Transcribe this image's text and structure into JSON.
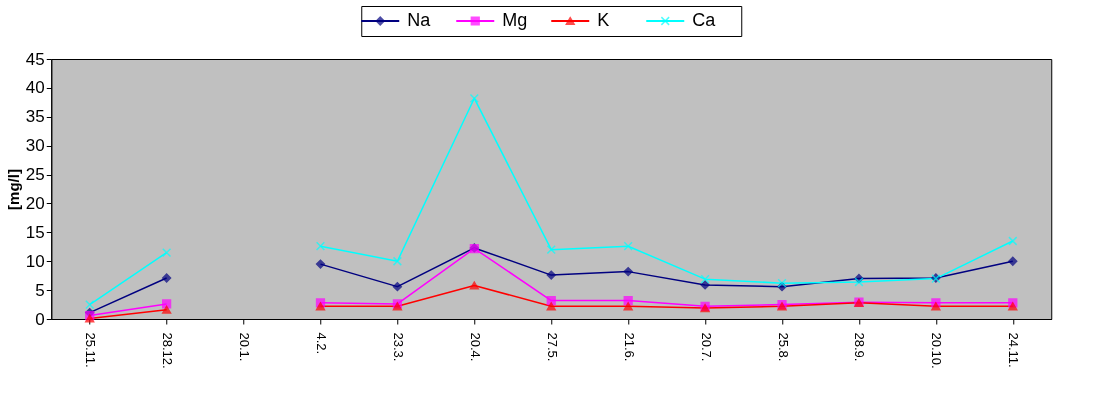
{
  "chart_data": {
    "type": "line",
    "ylabel": "[mg/l]",
    "categories": [
      "25.11.",
      "28.12.",
      "20.1.",
      "4.2.",
      "23.3.",
      "20.4.",
      "27.5.",
      "21.6.",
      "20.7.",
      "25.8.",
      "28.9.",
      "20.10.",
      "24.11."
    ],
    "series": [
      {
        "name": "Na",
        "color": "#000080",
        "marker": "diamond",
        "values": [
          1.1,
          7.1,
          null,
          9.5,
          5.6,
          12.3,
          7.6,
          8.2,
          5.9,
          5.6,
          7.0,
          7.1,
          10.0
        ]
      },
      {
        "name": "Mg",
        "color": "#ff00ff",
        "marker": "square",
        "values": [
          0.6,
          2.6,
          null,
          2.8,
          2.6,
          12.2,
          3.2,
          3.2,
          2.2,
          2.5,
          2.9,
          2.8,
          2.8
        ]
      },
      {
        "name": "K",
        "color": "#ff0000",
        "marker": "triangle",
        "values": [
          0.1,
          1.6,
          null,
          2.2,
          2.2,
          5.8,
          2.2,
          2.2,
          1.9,
          2.2,
          2.8,
          2.2,
          2.2
        ]
      },
      {
        "name": "Ca",
        "color": "#00ffff",
        "marker": "cross",
        "values": [
          2.5,
          11.5,
          null,
          12.6,
          10.0,
          38.2,
          12.0,
          12.6,
          6.9,
          6.2,
          6.4,
          7.0,
          13.5
        ]
      }
    ],
    "ylim": [
      0,
      45
    ],
    "yticks": [
      0,
      5,
      10,
      15,
      20,
      25,
      30,
      35,
      40,
      45
    ],
    "grid": false,
    "legend": "top",
    "line_style": "solid"
  }
}
